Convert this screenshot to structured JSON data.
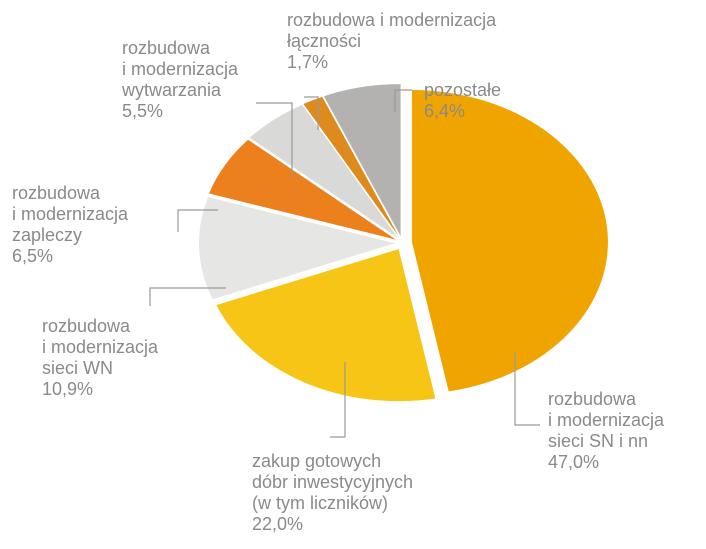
{
  "chart_data": {
    "type": "pie",
    "categories": [
      "rozbudowa\ni modernizacja\nsieci SN i nn",
      "zakup gotowych\ndóbr inwestycyjnych\n(w tym liczników)",
      "rozbudowa\ni modernizacja\nsieci WN",
      "rozbudowa\ni modernizacja\nzapleczy",
      "rozbudowa\ni modernizacja\nwytwarzania",
      "rozbudowa i modernizacja\nłączności",
      "pozostałe"
    ],
    "values": [
      47.0,
      22.0,
      10.9,
      6.5,
      5.5,
      1.7,
      6.4
    ],
    "value_labels": [
      "47,0%",
      "22,0%",
      "10,9%",
      "6,5%",
      "5,5%",
      "1,7%",
      "6,4%"
    ],
    "colors": [
      "#f0a400",
      "#f6c515",
      "#e6e6e4",
      "#ec801c",
      "#d9d9d7",
      "#de8a1c",
      "#b3b2b0"
    ]
  }
}
